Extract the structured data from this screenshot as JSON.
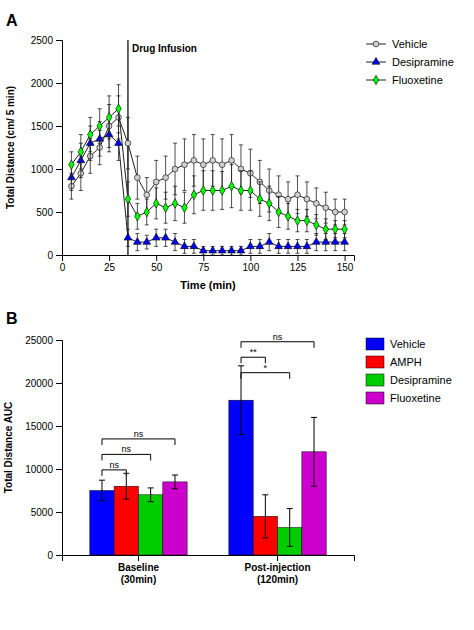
{
  "chart_data": [
    {
      "type": "line",
      "title": "A",
      "x_label": "Time (min)",
      "y_label": "Total Distance (cm/ 5 min)",
      "x": [
        5,
        10,
        15,
        20,
        25,
        30,
        35,
        40,
        45,
        50,
        55,
        60,
        65,
        70,
        75,
        80,
        85,
        90,
        95,
        100,
        105,
        110,
        115,
        120,
        125,
        130,
        135,
        140,
        145,
        150
      ],
      "series": [
        {
          "name": "Vehicle",
          "color": "#d0d0d0",
          "marker": "circle",
          "values": [
            800,
            950,
            1150,
            1250,
            1500,
            1600,
            1300,
            900,
            700,
            850,
            900,
            1000,
            1050,
            1100,
            1050,
            1100,
            1050,
            1100,
            1000,
            950,
            850,
            750,
            700,
            650,
            700,
            650,
            600,
            550,
            500,
            500
          ],
          "errors": [
            150,
            200,
            200,
            200,
            250,
            250,
            300,
            250,
            200,
            250,
            250,
            300,
            300,
            300,
            300,
            300,
            300,
            300,
            280,
            280,
            250,
            250,
            220,
            200,
            220,
            200,
            180,
            180,
            150,
            150
          ]
        },
        {
          "name": "Desipramine",
          "color": "#0000ff",
          "marker": "triangle",
          "values": [
            900,
            1100,
            1300,
            1350,
            1400,
            1300,
            200,
            150,
            150,
            200,
            200,
            150,
            100,
            100,
            50,
            50,
            50,
            50,
            50,
            100,
            100,
            150,
            100,
            100,
            100,
            100,
            150,
            150,
            150,
            150
          ],
          "errors": [
            150,
            200,
            200,
            200,
            200,
            200,
            100,
            100,
            80,
            100,
            100,
            100,
            80,
            80,
            50,
            50,
            50,
            50,
            50,
            80,
            80,
            100,
            80,
            80,
            80,
            80,
            100,
            100,
            100,
            100
          ]
        },
        {
          "name": "Fluoxetine",
          "color": "#00ff00",
          "marker": "diamond",
          "values": [
            1050,
            1200,
            1400,
            1500,
            1600,
            1700,
            650,
            450,
            500,
            600,
            550,
            600,
            550,
            700,
            750,
            750,
            750,
            800,
            750,
            750,
            650,
            600,
            500,
            450,
            400,
            400,
            350,
            300,
            300,
            300
          ],
          "errors": [
            150,
            200,
            200,
            200,
            250,
            280,
            200,
            150,
            150,
            180,
            180,
            200,
            180,
            220,
            230,
            230,
            220,
            250,
            230,
            230,
            200,
            200,
            180,
            150,
            130,
            130,
            120,
            120,
            100,
            100
          ]
        }
      ],
      "xlim": [
        0,
        155
      ],
      "xticks": [
        0,
        25,
        50,
        75,
        100,
        125,
        150
      ],
      "ylim": [
        0,
        2500
      ],
      "yticks": [
        0,
        500,
        1000,
        1500,
        2000,
        2500
      ],
      "annotations": [
        {
          "text": "Drug Infusion",
          "x": 35
        }
      ],
      "grid": false,
      "legend": "right"
    },
    {
      "type": "bar",
      "title": "B",
      "y_label": "Total Distance AUC",
      "categories": [
        "Baseline\n(30min)",
        "Post-injection\n(120min)"
      ],
      "series": [
        {
          "name": "Vehicle",
          "color": "#0000ff",
          "values": [
            7500,
            18000
          ],
          "errors": [
            1200,
            4000
          ]
        },
        {
          "name": "AMPH",
          "color": "#ff0000",
          "values": [
            8000,
            4500
          ],
          "errors": [
            1500,
            2500
          ]
        },
        {
          "name": "Desipramine",
          "color": "#00cc00",
          "values": [
            7000,
            3200
          ],
          "errors": [
            800,
            2200
          ]
        },
        {
          "name": "Fluoxetine",
          "color": "#cc00cc",
          "values": [
            8500,
            12000
          ],
          "errors": [
            800,
            4000
          ]
        }
      ],
      "ylim": [
        0,
        25000
      ],
      "yticks": [
        0,
        5000,
        10000,
        15000,
        20000,
        25000
      ],
      "annotations": [
        {
          "text": "ns",
          "category": 0,
          "series": [
            0,
            1
          ],
          "y": 9200
        },
        {
          "text": "ns",
          "category": 0,
          "series": [
            0,
            2
          ],
          "y": 11000
        },
        {
          "text": "ns",
          "category": 0,
          "series": [
            0,
            3
          ],
          "y": 12800
        },
        {
          "text": "*",
          "category": 1,
          "series": [
            0,
            2
          ],
          "y": 20500
        },
        {
          "text": "**",
          "category": 1,
          "series": [
            0,
            1
          ],
          "y": 22300
        },
        {
          "text": "ns",
          "category": 1,
          "series": [
            0,
            3
          ],
          "y": 24100
        }
      ],
      "grid": false,
      "legend": "right"
    }
  ]
}
